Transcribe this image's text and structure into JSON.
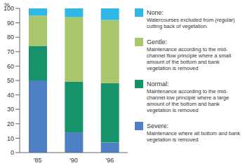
{
  "chart_data": {
    "type": "bar",
    "stacked": true,
    "y_label": "%",
    "categories": [
      "'85",
      "'90",
      "'96"
    ],
    "ylim": [
      0,
      100
    ],
    "yticks": [
      0,
      10,
      20,
      30,
      40,
      50,
      60,
      70,
      80,
      90,
      100
    ],
    "grid": false,
    "series": [
      {
        "name": "Severe:",
        "description": "Maintenance where all bottom and bank vegetation is removed",
        "color": "#4f7fc4",
        "values": [
          50,
          14,
          7
        ]
      },
      {
        "name": "Normal:",
        "description": "Maintenance according to the mid-channel low principle where a large amount of the bottom and bank vegetation is removed",
        "color": "#16936a",
        "values": [
          24,
          35,
          41
        ]
      },
      {
        "name": "Gentle:",
        "description": "Maintenance according to the mid-channel flow principle where a small amount of the bottom and bank vegetation is removed",
        "color": "#a8c66c",
        "values": [
          21,
          45,
          44
        ]
      },
      {
        "name": "None:",
        "description": "Watercourses excluded from (regular) cutting back of vegetation.",
        "color": "#2fb7e6",
        "values": [
          5,
          6,
          8
        ]
      }
    ]
  }
}
